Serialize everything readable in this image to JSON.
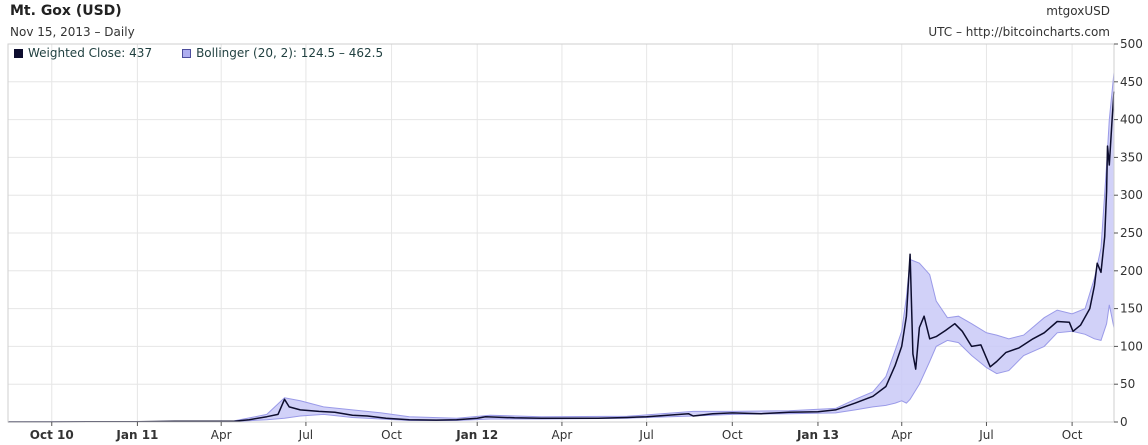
{
  "header": {
    "title": "Mt. Gox (USD)",
    "subtitle": "Nov 15, 2013 – Daily",
    "symbol": "mtgoxUSD",
    "source": "UTC – http://bitcoincharts.com"
  },
  "legend": {
    "close_label": "Weighted Close: 437",
    "bollinger_label": "Bollinger (20, 2): 124.5 – 462.5"
  },
  "colors": {
    "line": "#0d0d2e",
    "band_fill": "#c9c9f7",
    "band_edge": "#9a9ae8",
    "grid": "#e6e6e6",
    "axis": "#555555"
  },
  "chart_data": {
    "type": "line",
    "title": "Mt. Gox (USD)",
    "xlabel": "",
    "ylabel": "",
    "ylim": [
      0,
      500
    ],
    "yticks": [
      0,
      50,
      100,
      150,
      200,
      250,
      300,
      350,
      400,
      450,
      500
    ],
    "xlim": [
      "2010-08-15",
      "2013-11-15"
    ],
    "grid": true,
    "legend_position": "top-left",
    "x_ticks": [
      {
        "label": "Oct 10",
        "date": "2010-10-01",
        "bold": true
      },
      {
        "label": "Jan 11",
        "date": "2011-01-01",
        "bold": true
      },
      {
        "label": "Apr",
        "date": "2011-04-01",
        "bold": false
      },
      {
        "label": "Jul",
        "date": "2011-07-01",
        "bold": false
      },
      {
        "label": "Oct",
        "date": "2011-10-01",
        "bold": false
      },
      {
        "label": "Jan 12",
        "date": "2012-01-01",
        "bold": true
      },
      {
        "label": "Apr",
        "date": "2012-04-01",
        "bold": false
      },
      {
        "label": "Jul",
        "date": "2012-07-01",
        "bold": false
      },
      {
        "label": "Oct",
        "date": "2012-10-01",
        "bold": false
      },
      {
        "label": "Jan 13",
        "date": "2013-01-01",
        "bold": true
      },
      {
        "label": "Apr",
        "date": "2013-04-01",
        "bold": false
      },
      {
        "label": "Jul",
        "date": "2013-07-01",
        "bold": false
      },
      {
        "label": "Oct",
        "date": "2013-10-01",
        "bold": false
      }
    ],
    "series": [
      {
        "name": "Weighted Close",
        "points": [
          [
            "2010-08-15",
            0.07
          ],
          [
            "2010-10-01",
            0.1
          ],
          [
            "2010-11-10",
            0.3
          ],
          [
            "2011-01-01",
            0.3
          ],
          [
            "2011-02-10",
            1.0
          ],
          [
            "2011-03-15",
            0.9
          ],
          [
            "2011-04-15",
            1.0
          ],
          [
            "2011-05-01",
            3.0
          ],
          [
            "2011-05-20",
            7.0
          ],
          [
            "2011-06-01",
            10
          ],
          [
            "2011-06-08",
            30
          ],
          [
            "2011-06-13",
            20
          ],
          [
            "2011-06-25",
            16
          ],
          [
            "2011-07-15",
            14
          ],
          [
            "2011-08-01",
            13
          ],
          [
            "2011-08-20",
            9
          ],
          [
            "2011-09-05",
            8
          ],
          [
            "2011-09-25",
            5
          ],
          [
            "2011-10-20",
            3
          ],
          [
            "2011-11-18",
            2.5
          ],
          [
            "2011-12-10",
            3
          ],
          [
            "2012-01-01",
            5
          ],
          [
            "2012-01-10",
            7
          ],
          [
            "2012-02-10",
            5.5
          ],
          [
            "2012-03-10",
            5
          ],
          [
            "2012-04-10",
            5
          ],
          [
            "2012-05-10",
            5
          ],
          [
            "2012-06-10",
            6
          ],
          [
            "2012-07-01",
            7
          ],
          [
            "2012-08-15",
            11
          ],
          [
            "2012-08-20",
            8
          ],
          [
            "2012-09-10",
            11
          ],
          [
            "2012-10-01",
            12
          ],
          [
            "2012-11-01",
            11
          ],
          [
            "2012-12-01",
            13
          ],
          [
            "2013-01-01",
            13.5
          ],
          [
            "2013-01-20",
            16
          ],
          [
            "2013-02-10",
            25
          ],
          [
            "2013-03-01",
            34
          ],
          [
            "2013-03-15",
            47
          ],
          [
            "2013-03-25",
            75
          ],
          [
            "2013-04-01",
            100
          ],
          [
            "2013-04-06",
            140
          ],
          [
            "2013-04-10",
            222
          ],
          [
            "2013-04-13",
            90
          ],
          [
            "2013-04-16",
            70
          ],
          [
            "2013-04-20",
            125
          ],
          [
            "2013-04-25",
            140
          ],
          [
            "2013-05-01",
            110
          ],
          [
            "2013-05-08",
            113
          ],
          [
            "2013-05-18",
            121
          ],
          [
            "2013-05-28",
            130
          ],
          [
            "2013-06-05",
            120
          ],
          [
            "2013-06-15",
            100
          ],
          [
            "2013-06-25",
            102
          ],
          [
            "2013-07-05",
            73
          ],
          [
            "2013-07-12",
            80
          ],
          [
            "2013-07-22",
            92
          ],
          [
            "2013-08-05",
            98
          ],
          [
            "2013-08-20",
            110
          ],
          [
            "2013-09-01",
            118
          ],
          [
            "2013-09-15",
            133
          ],
          [
            "2013-09-28",
            132
          ],
          [
            "2013-10-02",
            120
          ],
          [
            "2013-10-10",
            128
          ],
          [
            "2013-10-20",
            150
          ],
          [
            "2013-10-25",
            180
          ],
          [
            "2013-10-28",
            210
          ],
          [
            "2013-11-01",
            198
          ],
          [
            "2013-11-05",
            245
          ],
          [
            "2013-11-07",
            305
          ],
          [
            "2013-11-08",
            365
          ],
          [
            "2013-11-10",
            340
          ],
          [
            "2013-11-13",
            400
          ],
          [
            "2013-11-15",
            437
          ]
        ]
      },
      {
        "name": "Bollinger (20, 2)",
        "upper": [
          [
            "2010-08-15",
            0.1
          ],
          [
            "2011-01-01",
            0.5
          ],
          [
            "2011-04-15",
            1.5
          ],
          [
            "2011-05-20",
            10
          ],
          [
            "2011-06-08",
            32
          ],
          [
            "2011-06-25",
            28
          ],
          [
            "2011-07-20",
            20
          ],
          [
            "2011-08-20",
            16
          ],
          [
            "2011-09-20",
            12
          ],
          [
            "2011-10-20",
            7
          ],
          [
            "2011-12-10",
            5
          ],
          [
            "2012-01-15",
            9
          ],
          [
            "2012-03-10",
            7
          ],
          [
            "2012-06-10",
            7.5
          ],
          [
            "2012-08-20",
            14
          ],
          [
            "2012-10-01",
            14
          ],
          [
            "2012-12-01",
            15
          ],
          [
            "2013-01-20",
            18
          ],
          [
            "2013-02-10",
            30
          ],
          [
            "2013-03-01",
            40
          ],
          [
            "2013-03-15",
            60
          ],
          [
            "2013-03-25",
            95
          ],
          [
            "2013-04-01",
            120
          ],
          [
            "2013-04-06",
            165
          ],
          [
            "2013-04-10",
            215
          ],
          [
            "2013-04-20",
            210
          ],
          [
            "2013-05-01",
            195
          ],
          [
            "2013-05-08",
            160
          ],
          [
            "2013-05-20",
            138
          ],
          [
            "2013-06-01",
            140
          ],
          [
            "2013-06-15",
            130
          ],
          [
            "2013-07-01",
            118
          ],
          [
            "2013-07-12",
            115
          ],
          [
            "2013-07-25",
            110
          ],
          [
            "2013-08-10",
            115
          ],
          [
            "2013-09-01",
            138
          ],
          [
            "2013-09-15",
            148
          ],
          [
            "2013-10-01",
            143
          ],
          [
            "2013-10-15",
            150
          ],
          [
            "2013-10-25",
            190
          ],
          [
            "2013-11-01",
            230
          ],
          [
            "2013-11-07",
            340
          ],
          [
            "2013-11-10",
            400
          ],
          [
            "2013-11-15",
            462.5
          ]
        ],
        "lower": [
          [
            "2010-08-15",
            0.05
          ],
          [
            "2011-01-01",
            0.2
          ],
          [
            "2011-04-15",
            0.6
          ],
          [
            "2011-05-20",
            3
          ],
          [
            "2011-06-08",
            5
          ],
          [
            "2011-06-25",
            8
          ],
          [
            "2011-07-20",
            10
          ],
          [
            "2011-08-20",
            6
          ],
          [
            "2011-09-20",
            4
          ],
          [
            "2011-10-20",
            2
          ],
          [
            "2011-12-10",
            2
          ],
          [
            "2012-01-15",
            4
          ],
          [
            "2012-03-10",
            4
          ],
          [
            "2012-06-10",
            5
          ],
          [
            "2012-08-20",
            8
          ],
          [
            "2012-10-01",
            10
          ],
          [
            "2012-12-01",
            11
          ],
          [
            "2013-01-20",
            12
          ],
          [
            "2013-02-10",
            16
          ],
          [
            "2013-03-01",
            20
          ],
          [
            "2013-03-15",
            22
          ],
          [
            "2013-03-25",
            25
          ],
          [
            "2013-04-01",
            28
          ],
          [
            "2013-04-06",
            25
          ],
          [
            "2013-04-10",
            30
          ],
          [
            "2013-04-20",
            50
          ],
          [
            "2013-05-01",
            80
          ],
          [
            "2013-05-08",
            100
          ],
          [
            "2013-05-20",
            108
          ],
          [
            "2013-06-01",
            105
          ],
          [
            "2013-06-15",
            88
          ],
          [
            "2013-07-01",
            72
          ],
          [
            "2013-07-12",
            64
          ],
          [
            "2013-07-25",
            68
          ],
          [
            "2013-08-10",
            88
          ],
          [
            "2013-09-01",
            100
          ],
          [
            "2013-09-15",
            118
          ],
          [
            "2013-10-01",
            120
          ],
          [
            "2013-10-15",
            116
          ],
          [
            "2013-10-25",
            110
          ],
          [
            "2013-11-01",
            108
          ],
          [
            "2013-11-07",
            130
          ],
          [
            "2013-11-10",
            155
          ],
          [
            "2013-11-15",
            124.5
          ]
        ]
      }
    ]
  }
}
